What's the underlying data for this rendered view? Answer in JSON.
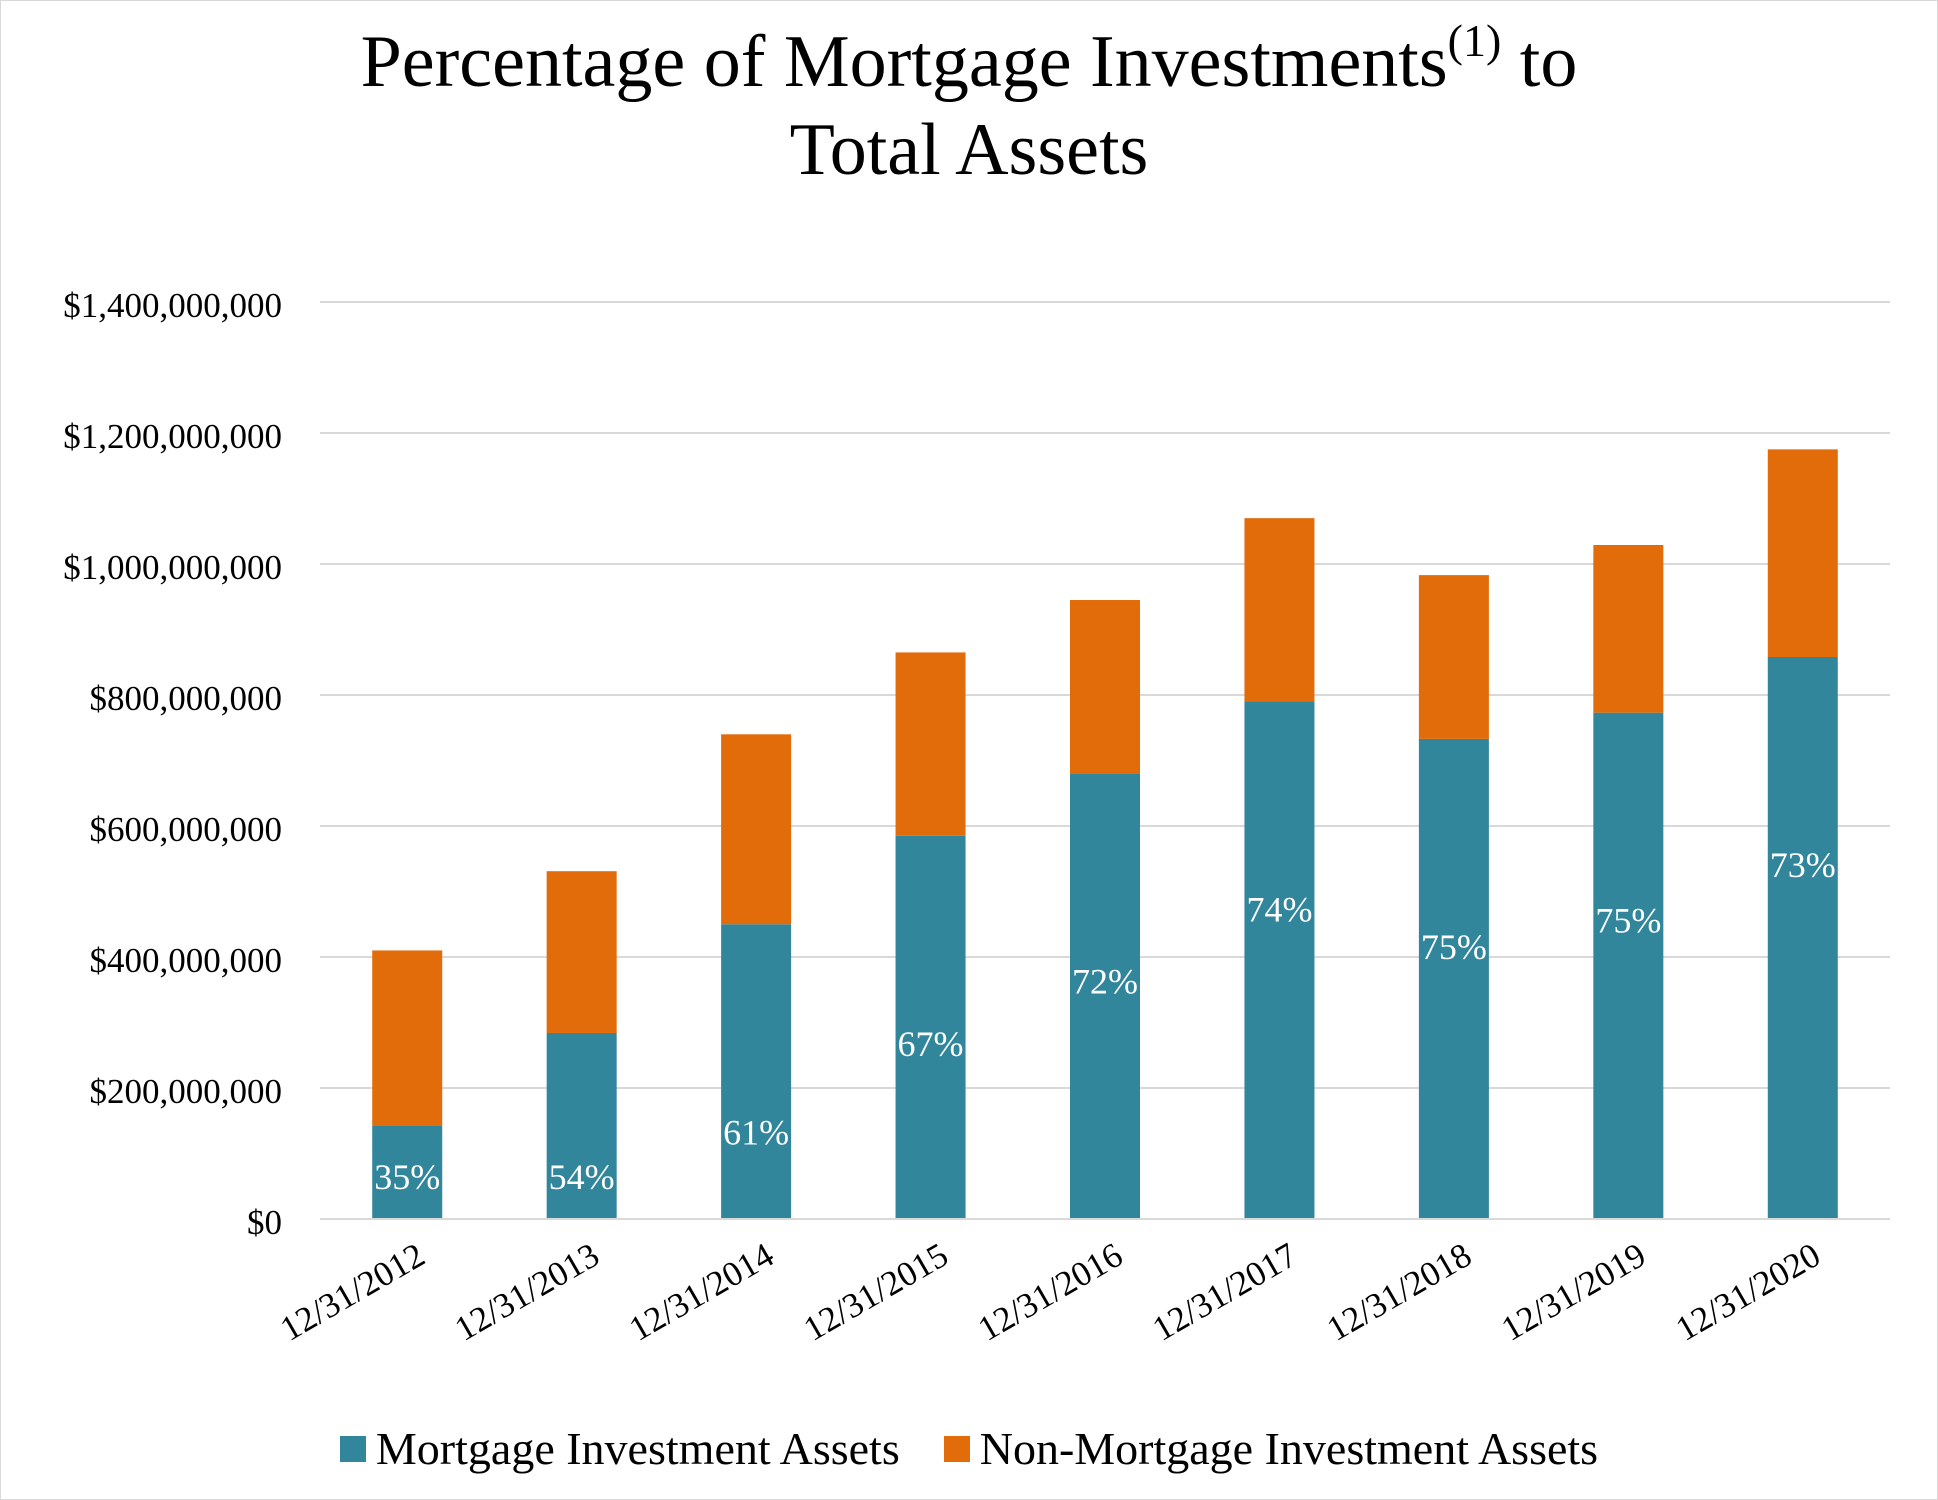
{
  "title": {
    "line1_text": "Percentage of Mortgage Investments",
    "line1_superscript": "(1)",
    "line1_suffix": " to",
    "line2": "Total Assets"
  },
  "colors": {
    "mortgage": "#31869b",
    "non_mortgage": "#e26b0a",
    "grid": "#d9d9d9",
    "data_label": "#ffffff"
  },
  "chart_data": {
    "type": "bar",
    "stacked": true,
    "categories": [
      "12/31/2012",
      "12/31/2013",
      "12/31/2014",
      "12/31/2015",
      "12/31/2016",
      "12/31/2017",
      "12/31/2018",
      "12/31/2019",
      "12/31/2020"
    ],
    "series": [
      {
        "name": "Mortgage Investment Assets",
        "color": "#31869b",
        "values": [
          143000000,
          284000000,
          450000000,
          585000000,
          680000000,
          790000000,
          733000000,
          773000000,
          858000000
        ],
        "data_labels": [
          "35%",
          "54%",
          "61%",
          "67%",
          "72%",
          "74%",
          "75%",
          "75%",
          "73%"
        ]
      },
      {
        "name": "Non-Mortgage Investment Assets",
        "color": "#e26b0a",
        "values": [
          267000000,
          247000000,
          290000000,
          280000000,
          265000000,
          280000000,
          250000000,
          256000000,
          317000000
        ]
      }
    ],
    "yticks": [
      "$0",
      "$200,000,000",
      "$400,000,000",
      "$600,000,000",
      "$800,000,000",
      "$1,000,000,000",
      "$1,200,000,000",
      "$1,400,000,000"
    ],
    "ytick_values": [
      0,
      200000000,
      400000000,
      600000000,
      800000000,
      1000000000,
      1200000000,
      1400000000
    ],
    "ylim": [
      0,
      1400000000
    ],
    "grid": true,
    "legend_position": "bottom"
  }
}
